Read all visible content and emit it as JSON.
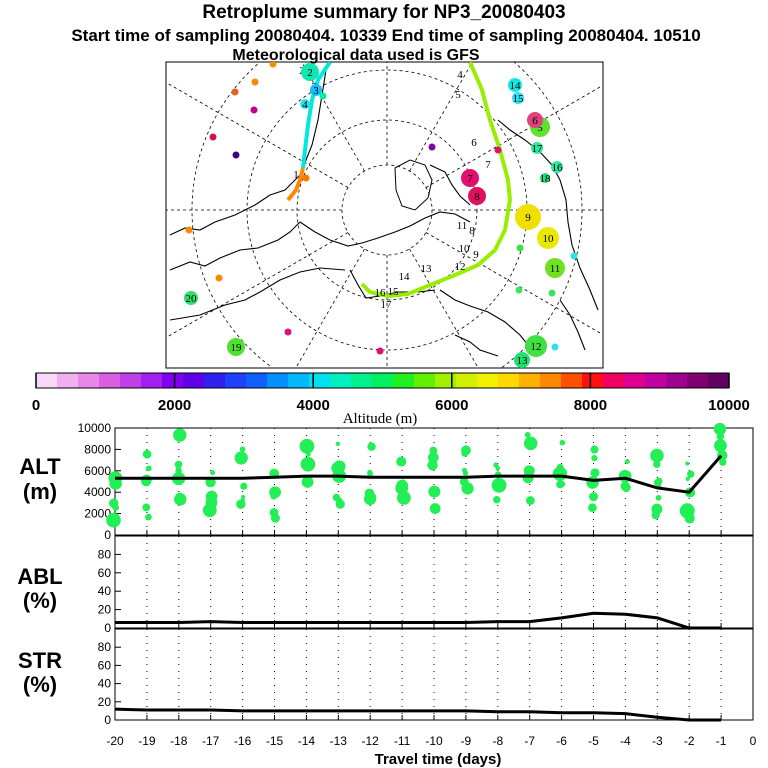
{
  "header": {
    "title": "Retroplume summary for NP3_20080403",
    "subtitle": "Start time of sampling 20080404. 10339     End time of sampling 20080404. 10510",
    "met_line": "Meteorological data used is GFS"
  },
  "map": {
    "trajectory_numbers": [
      "1",
      "2",
      "3",
      "4",
      "5",
      "6",
      "7",
      "8",
      "9",
      "10",
      "11",
      "12",
      "13",
      "14",
      "15",
      "16",
      "17"
    ],
    "cluster_labels": [
      "2",
      "3",
      "4",
      "5",
      "6",
      "7",
      "8",
      "9",
      "10",
      "11",
      "12",
      "13",
      "14",
      "15",
      "16",
      "17",
      "18",
      "19",
      "20"
    ]
  },
  "colorbar": {
    "label": "Altitude (m)",
    "tick_labels": [
      "0",
      "2000",
      "4000",
      "6000",
      "8000",
      "10000"
    ],
    "colors": [
      "#f8d8f8",
      "#f0b0f0",
      "#e888e8",
      "#d860e0",
      "#c040e8",
      "#a020f0",
      "#8000f0",
      "#6000e8",
      "#3020f0",
      "#2040ff",
      "#1060ff",
      "#0090ff",
      "#00b8ff",
      "#00e0f0",
      "#00f0c0",
      "#00f090",
      "#00f060",
      "#20f020",
      "#60f000",
      "#a0f000",
      "#d0f000",
      "#f0f000",
      "#ffd800",
      "#ffb000",
      "#ff8800",
      "#ff5000",
      "#ff1010",
      "#f00060",
      "#e00090",
      "#c000a0",
      "#a00090",
      "#800070",
      "#600060"
    ]
  },
  "chart_data": [
    {
      "type": "scatter",
      "title": "ALT (m)",
      "ylabel": "ALT (m)",
      "xlabel": "Travel time (days)",
      "ylim": [
        0,
        10000
      ],
      "yticks": [
        "0",
        "2000",
        "4000",
        "6000",
        "8000",
        "10000"
      ],
      "x": [
        -20,
        -19,
        -18,
        -17,
        -16,
        -15,
        -14,
        -13,
        -12,
        -11,
        -10,
        -9,
        -8,
        -7,
        -6,
        -5,
        -4,
        -3,
        -2,
        -1
      ],
      "series": [
        {
          "name": "mean altitude",
          "values": [
            5300,
            5300,
            5300,
            5300,
            5300,
            5400,
            5500,
            5500,
            5400,
            5400,
            5400,
            5400,
            5500,
            5500,
            5500,
            5100,
            5300,
            4400,
            4000,
            7400
          ]
        }
      ]
    },
    {
      "type": "line",
      "title": "ABL (%)",
      "ylabel": "ABL (%)",
      "ylim": [
        0,
        100
      ],
      "yticks": [
        "0",
        "20",
        "40",
        "60",
        "80"
      ],
      "x": [
        -20,
        -19,
        -18,
        -17,
        -16,
        -15,
        -14,
        -13,
        -12,
        -11,
        -10,
        -9,
        -8,
        -7,
        -6,
        -5,
        -4,
        -3,
        -2,
        -1
      ],
      "series": [
        {
          "name": "ABL fraction",
          "values": [
            6,
            6,
            6,
            7,
            6,
            6,
            6,
            6,
            6,
            6,
            6,
            6,
            7,
            7,
            11,
            16,
            15,
            11,
            0,
            0
          ]
        }
      ]
    },
    {
      "type": "line",
      "title": "STR (%)",
      "ylabel": "STR (%)",
      "xlabel": "Travel time (days)",
      "ylim": [
        0,
        100
      ],
      "yticks": [
        "0",
        "20",
        "40",
        "60",
        "80"
      ],
      "xticks": [
        "-20",
        "-19",
        "-18",
        "-17",
        "-16",
        "-15",
        "-14",
        "-13",
        "-12",
        "-11",
        "-10",
        "-9",
        "-8",
        "-7",
        "-6",
        "-5",
        "-4",
        "-3",
        "-2",
        "-1",
        "0"
      ],
      "x": [
        -20,
        -19,
        -18,
        -17,
        -16,
        -15,
        -14,
        -13,
        -12,
        -11,
        -10,
        -9,
        -8,
        -7,
        -6,
        -5,
        -4,
        -3,
        -2,
        -1
      ],
      "series": [
        {
          "name": "stratosphere fraction",
          "values": [
            12,
            11,
            11,
            11,
            10,
            10,
            10,
            10,
            10,
            10,
            10,
            10,
            9,
            9,
            8,
            8,
            7,
            3,
            0,
            0
          ]
        }
      ]
    }
  ],
  "axes_labels": {
    "alt_line1": "ALT",
    "alt_line2": "(m)",
    "abl_line1": "ABL",
    "abl_line2": "(%)",
    "str_line1": "STR",
    "str_line2": "(%)",
    "xlabel": "Travel time (days)"
  },
  "styles": {
    "dot_color": "#22ee55",
    "line_color": "#000000",
    "traj_lime": "#99ee00",
    "traj_cyan": "#00e8e0",
    "traj_orange": "#ff8800"
  }
}
